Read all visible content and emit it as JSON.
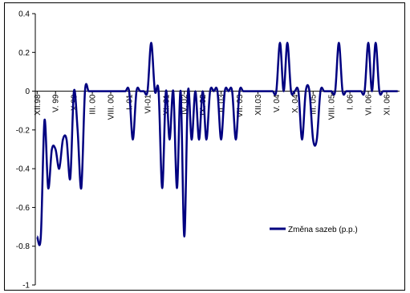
{
  "chart_data": {
    "type": "line",
    "title": "",
    "xlabel": "",
    "ylabel": "",
    "ylim": [
      -1,
      0.4
    ],
    "yticks": [
      {
        "value": 0.4,
        "label": "0.4"
      },
      {
        "value": 0.2,
        "label": "0.2"
      },
      {
        "value": 0,
        "label": "0"
      },
      {
        "value": -0.2,
        "label": "-0.2"
      },
      {
        "value": -0.4,
        "label": "-0.4"
      },
      {
        "value": -0.6,
        "label": "-0.6"
      },
      {
        "value": -0.8,
        "label": "-0.8"
      },
      {
        "value": -1,
        "label": "-1"
      }
    ],
    "xticks": [
      {
        "index": 0,
        "label": "XII.98"
      },
      {
        "index": 5,
        "label": "V. 99"
      },
      {
        "index": 10,
        "label": "X.99"
      },
      {
        "index": 15,
        "label": "III. 00"
      },
      {
        "index": 20,
        "label": "VIII. 00"
      },
      {
        "index": 25,
        "label": "I. 01"
      },
      {
        "index": 30,
        "label": "VI-01"
      },
      {
        "index": 35,
        "label": "XI. 01"
      },
      {
        "index": 40,
        "label": "IV. 02"
      },
      {
        "index": 45,
        "label": "IX. 02"
      },
      {
        "index": 50,
        "label": "II. 03"
      },
      {
        "index": 55,
        "label": "VII. 03"
      },
      {
        "index": 60,
        "label": "XII.03"
      },
      {
        "index": 65,
        "label": "V. 04"
      },
      {
        "index": 70,
        "label": "X. 04"
      },
      {
        "index": 75,
        "label": "III. 05"
      },
      {
        "index": 80,
        "label": "VIII. 05"
      },
      {
        "index": 85,
        "label": "I. 06"
      },
      {
        "index": 90,
        "label": "VI. 06"
      },
      {
        "index": 95,
        "label": "XI. 06"
      }
    ],
    "x_count": 99,
    "series": [
      {
        "name": "Změna sazeb (p.p.)",
        "color": "#000080",
        "values": [
          -0.75,
          -0.75,
          -0.15,
          -0.5,
          -0.3,
          -0.3,
          -0.4,
          -0.25,
          -0.25,
          -0.45,
          0,
          -0.2,
          -0.5,
          0,
          0,
          0,
          0,
          0,
          0,
          0,
          0,
          0,
          0,
          0,
          0,
          0,
          -0.25,
          0,
          0,
          0,
          0,
          0.25,
          0,
          0,
          -0.5,
          0,
          -0.25,
          0,
          -0.5,
          0,
          -0.75,
          0,
          -0.25,
          0,
          -0.25,
          0,
          -0.25,
          0,
          0,
          0,
          -0.25,
          0,
          0,
          0,
          -0.25,
          0,
          0,
          0,
          0,
          0,
          0,
          0,
          0,
          0,
          0,
          0,
          0.25,
          0,
          0.25,
          0,
          0,
          0,
          -0.25,
          0,
          0,
          -0.25,
          -0.25,
          0,
          0,
          0,
          0,
          0,
          0.25,
          0,
          0,
          0,
          0,
          0,
          0,
          0,
          0.25,
          0,
          0.25,
          0,
          0,
          0,
          0,
          0,
          0
        ]
      }
    ],
    "legend": {
      "label": "Změna sazeb (p.p.)",
      "placement": "right"
    },
    "grid": false
  }
}
